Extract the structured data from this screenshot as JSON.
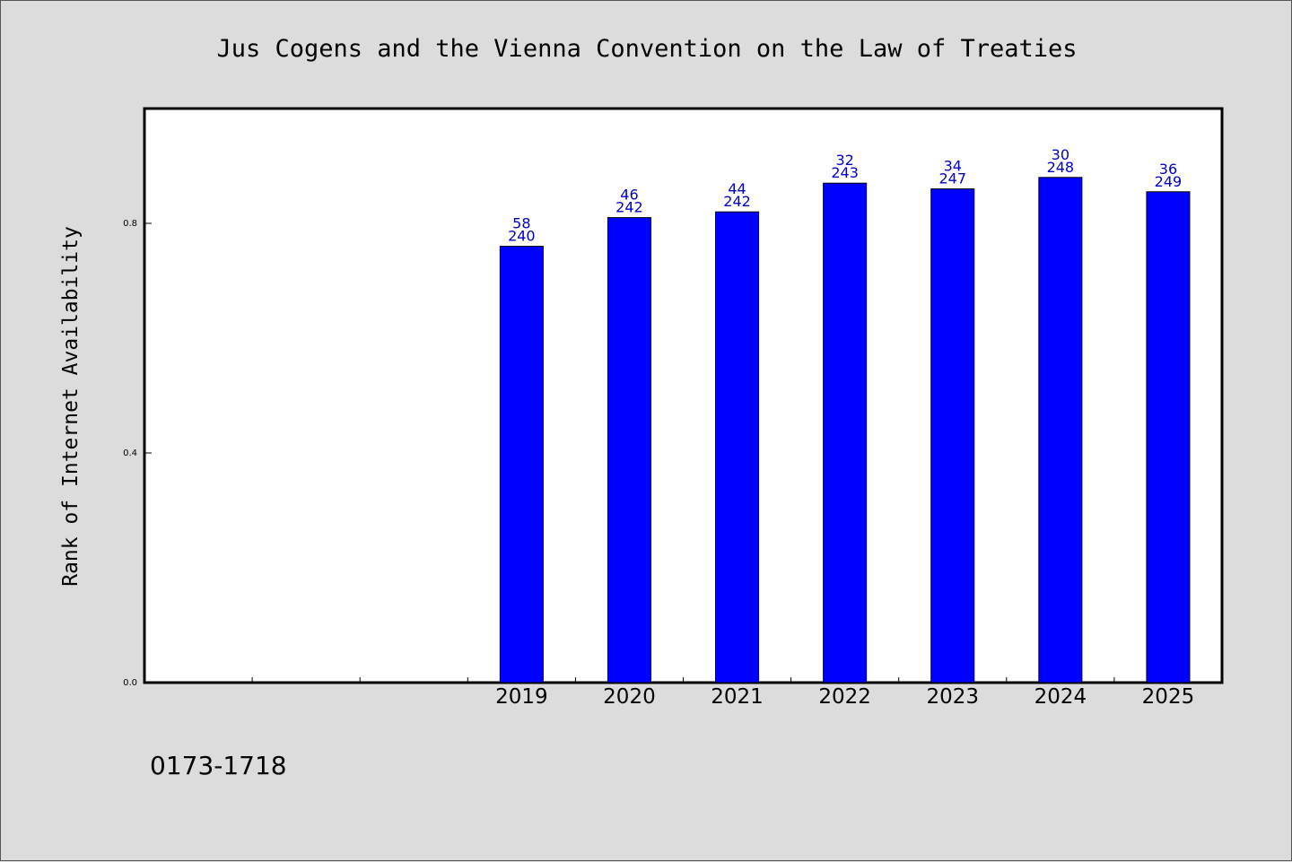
{
  "chart_data": {
    "type": "bar",
    "title": "Jus Cogens and the Vienna Convention on the Law of Treaties",
    "xlabel": "",
    "ylabel": "Rank of Internet Availability",
    "categories": [
      "",
      "",
      "",
      "2019",
      "2020",
      "2021",
      "2022",
      "2023",
      "2024",
      "2025"
    ],
    "values": [
      null,
      null,
      null,
      0.76,
      0.81,
      0.82,
      0.87,
      0.86,
      0.88,
      0.855
    ],
    "annotations_top": [
      "",
      "",
      "",
      "58",
      "46",
      "44",
      "32",
      "34",
      "30",
      "36"
    ],
    "annotations_bottom": [
      "",
      "",
      "",
      "240",
      "242",
      "242",
      "243",
      "247",
      "248",
      "249"
    ],
    "ylim": [
      0,
      1.0
    ],
    "yticks": [
      0.0,
      0.4,
      0.8
    ],
    "ytick_labels": [
      "0.0",
      "0.4",
      "0.8"
    ],
    "grid": false,
    "bar_color": "#0000ff",
    "label_color": "#0000cc",
    "background_color": "#dcdcdc",
    "plot_background_color": "#ffffff"
  },
  "footer": {
    "code": "0173-1718"
  }
}
